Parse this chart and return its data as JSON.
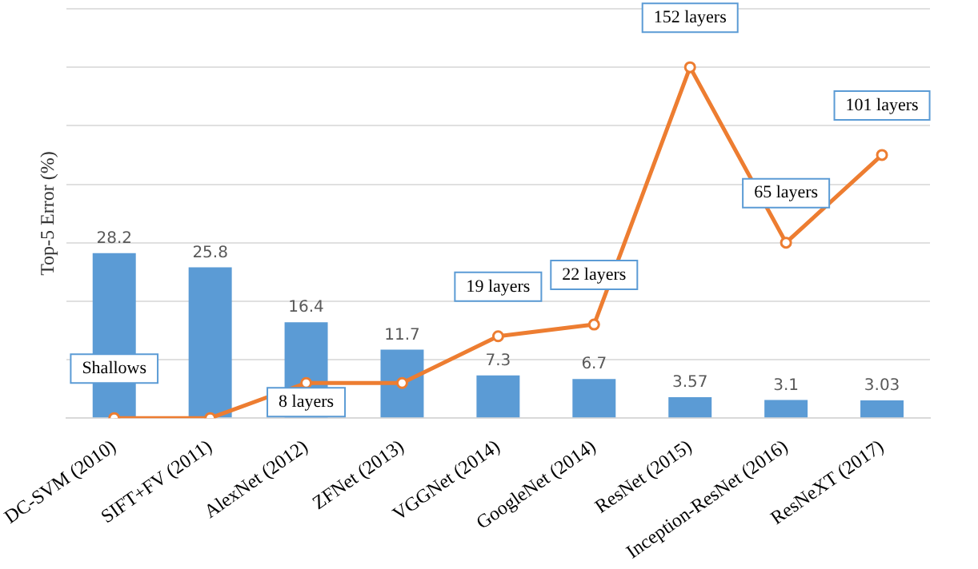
{
  "chart_data": {
    "type": "bar",
    "ylabel": "Top-5 Error (%)",
    "categories": [
      "DC-SVM (2010)",
      "SIFT+FV (2011)",
      "AlexNet (2012)",
      "ZFNet (2013)",
      "VGGNet (2014)",
      "GoogleNet (2014)",
      "ResNet (2015)",
      "Inception-ResNet (2016)",
      "ResNeXT (2017)"
    ],
    "series": [
      {
        "color": "#5b9bd5",
        "values": [
          28.2,
          25.8,
          16.4,
          11.7,
          7.3,
          6.7,
          3.57,
          3.1,
          3.03
        ],
        "value_labels": [
          "28.2",
          "25.8",
          "16.4",
          "11.7",
          "7.3",
          "6.7",
          "3.57",
          "3.1",
          "3.03"
        ]
      },
      {
        "type": "line",
        "color": "#ed7d31",
        "values": [
          0,
          0,
          6,
          6,
          14,
          16,
          60,
          30,
          45
        ]
      }
    ],
    "annotations": [
      {
        "text": "Shallows",
        "x": "DC-SVM (2010)",
        "y": 0
      },
      {
        "text": "8 layers",
        "x": "AlexNet (2012)",
        "y": 6
      },
      {
        "text": "19 layers",
        "x": "VGGNet (2014)",
        "y": 14
      },
      {
        "text": "22 layers",
        "x": "GoogleNet (2014)",
        "y": 16
      },
      {
        "text": "152 layers",
        "x": "ResNet (2015)",
        "y": 60
      },
      {
        "text": "65 layers",
        "x": "Inception-ResNet (2016)",
        "y": 30
      },
      {
        "text": "101 layers",
        "x": "ResNeXT (2017)",
        "y": 45
      }
    ],
    "ylim": [
      0,
      70
    ],
    "yticks": [
      {
        "value": 0,
        "label": null
      },
      {
        "value": 10,
        "label": null
      },
      {
        "value": 20,
        "label": null
      },
      {
        "value": 30,
        "label": null
      },
      {
        "value": 40,
        "label": null
      },
      {
        "value": 50,
        "label": null
      },
      {
        "value": 60,
        "label": null
      },
      {
        "value": 70,
        "label": null
      }
    ],
    "tick_labels": "x",
    "grid": "y",
    "marker": "circle",
    "line_style": "solid"
  }
}
